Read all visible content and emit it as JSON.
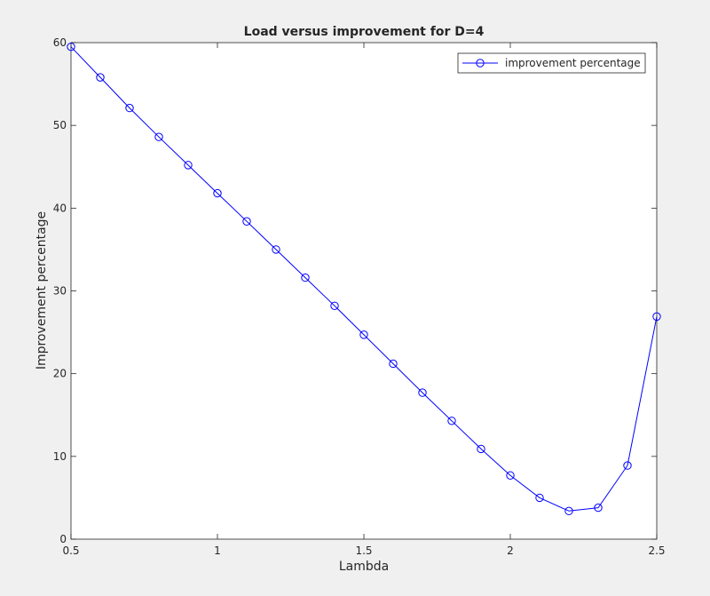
{
  "chart_data": {
    "type": "line",
    "title": "Load versus improvement for D=4",
    "xlabel": "Lambda",
    "ylabel": "Improvement percentage",
    "xlim": [
      0.5,
      2.5
    ],
    "ylim": [
      0,
      60
    ],
    "x_ticks": [
      0.5,
      1,
      1.5,
      2,
      2.5
    ],
    "x_tick_labels": [
      "0.5",
      "1",
      "1.5",
      "2",
      "2.5"
    ],
    "y_ticks": [
      0,
      10,
      20,
      30,
      40,
      50,
      60
    ],
    "y_tick_labels": [
      "0",
      "10",
      "20",
      "30",
      "40",
      "50",
      "60"
    ],
    "grid": false,
    "legend_position": "top-right",
    "x": [
      0.5,
      0.6,
      0.7,
      0.8,
      0.9,
      1.0,
      1.1,
      1.2,
      1.3,
      1.4,
      1.5,
      1.6,
      1.7,
      1.8,
      1.9,
      2.0,
      2.1,
      2.2,
      2.3,
      2.4,
      2.5
    ],
    "series": [
      {
        "name": "improvement percentage",
        "color": "#0000ff",
        "marker": "circle",
        "values": [
          59.5,
          55.8,
          52.1,
          48.6,
          45.2,
          41.8,
          38.4,
          35.0,
          31.6,
          28.2,
          24.7,
          21.2,
          17.7,
          14.3,
          10.9,
          7.7,
          5.0,
          3.4,
          3.8,
          8.9,
          26.9
        ]
      }
    ]
  }
}
